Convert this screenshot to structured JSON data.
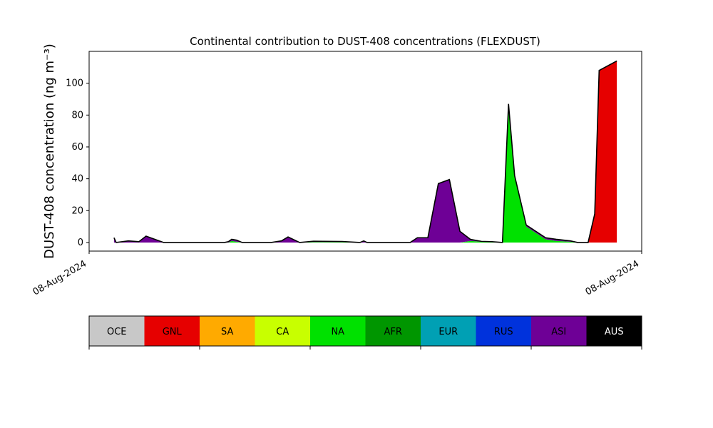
{
  "chart_data": {
    "type": "stacked-area",
    "title": "Continental contribution to DUST-408 concentrations (FLEXDUST)",
    "ylabel": "DUST-408 concentration (ng m⁻³)",
    "x": [
      4.5,
      4.9,
      7.1,
      9.0,
      10.3,
      13.5,
      24.5,
      25.2,
      25.8,
      26.7,
      27.7,
      32.9,
      34.8,
      36.0,
      38.1,
      40.6,
      45.8,
      49.0,
      49.7,
      50.3,
      58.1,
      59.4,
      61.3,
      63.2,
      65.2,
      67.1,
      69.0,
      71.0,
      72.9,
      74.8,
      75.9,
      77.0,
      79.1,
      82.6,
      84.5,
      87.1,
      88.4,
      90.3,
      91.5,
      92.3,
      95.5
    ],
    "series": [
      {
        "name": "GNL",
        "color": "#e60000",
        "values": [
          0,
          0,
          0,
          0,
          0,
          0,
          0,
          0,
          0,
          0,
          0,
          0,
          0,
          0,
          0,
          0,
          0,
          0,
          0,
          0,
          0,
          0,
          0,
          0,
          0,
          0,
          0,
          0,
          0,
          0,
          0,
          0,
          0,
          0,
          0,
          0,
          0,
          0,
          18,
          108,
          114
        ]
      },
      {
        "name": "NA",
        "color": "#00e100",
        "values": [
          0,
          0,
          0,
          0,
          0,
          0,
          0,
          0,
          1,
          0.5,
          0,
          0,
          0,
          0,
          0,
          0.3,
          0.3,
          0,
          0,
          0,
          0,
          0,
          0,
          0,
          0,
          0,
          1,
          0.5,
          0.5,
          0,
          87,
          42,
          10,
          2,
          1,
          0.5,
          0,
          0,
          0,
          0,
          0
        ]
      },
      {
        "name": "ASI",
        "color": "#6e0096",
        "values": [
          3,
          0,
          1,
          0.5,
          4,
          0,
          0,
          0.5,
          1,
          1,
          0,
          0,
          1,
          3.5,
          0,
          0.5,
          0.3,
          0,
          1,
          0,
          0,
          3,
          3,
          37,
          39.5,
          7,
          1,
          0.2,
          0,
          0,
          0,
          0,
          1,
          1,
          1,
          0.5,
          0,
          0,
          0,
          0,
          0
        ]
      }
    ],
    "xlim": [
      0,
      100
    ],
    "xticks": [
      {
        "value": 0,
        "label": "08-Aug-2024"
      },
      {
        "value": 100,
        "label": "08-Aug-2024"
      }
    ],
    "ylim": [
      -5.4,
      120
    ],
    "yticks": [
      0,
      20,
      40,
      60,
      80,
      100
    ],
    "outline_color": "#000000",
    "legend": [
      {
        "name": "OCE",
        "color": "#c8c8c8"
      },
      {
        "name": "GNL",
        "color": "#e60000"
      },
      {
        "name": "SA",
        "color": "#ffaa00"
      },
      {
        "name": "CA",
        "color": "#c8ff00"
      },
      {
        "name": "NA",
        "color": "#00e100"
      },
      {
        "name": "AFR",
        "color": "#009600"
      },
      {
        "name": "EUR",
        "color": "#00a0b4"
      },
      {
        "name": "RUS",
        "color": "#0032dc"
      },
      {
        "name": "ASI",
        "color": "#6e0096"
      },
      {
        "name": "AUS",
        "color": "#000000"
      }
    ]
  }
}
